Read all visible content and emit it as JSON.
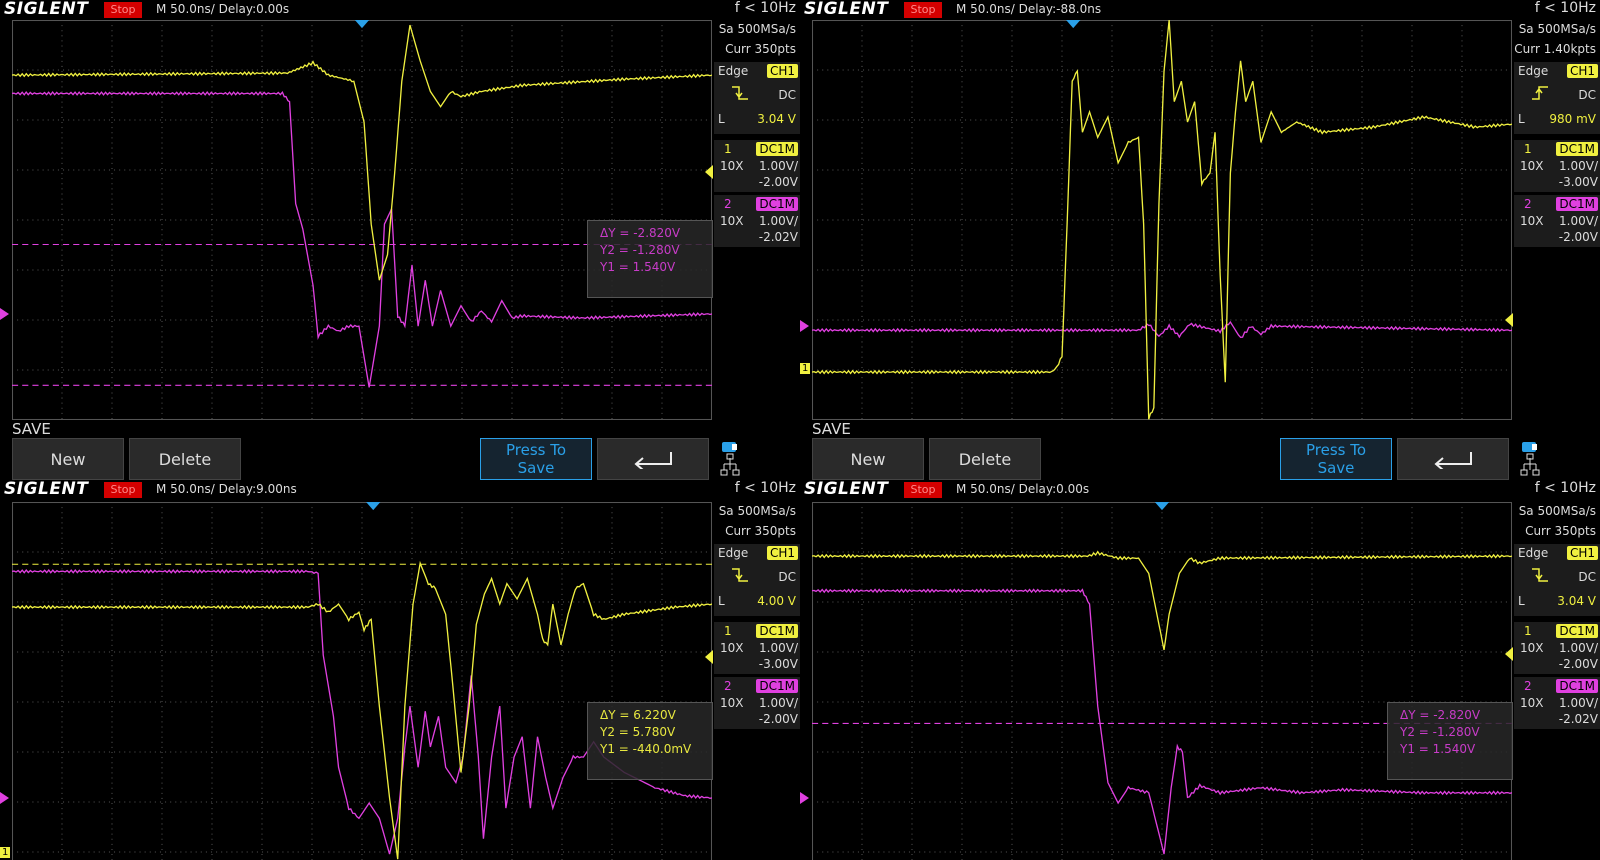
{
  "panels": [
    {
      "brand": "SIGLENT",
      "status": "Stop",
      "timebase": "M 50.0ns/  Delay:0.00s",
      "frequency": "f < 10Hz",
      "sample_rate": "Sa 500MSa/s",
      "memory": "Curr 350pts",
      "trigger": {
        "type": "Edge",
        "source": "CH1",
        "coupling": "DC",
        "level_label": "L",
        "level": "3.04 V"
      },
      "channels": [
        {
          "number": "1",
          "impedance": "DC1M",
          "probe": "10X",
          "scale": "1.00V/",
          "offset": "-2.00V"
        },
        {
          "number": "2",
          "impedance": "DC1M",
          "probe": "10X",
          "scale": "1.00V/",
          "offset": "-2.02V"
        }
      ],
      "cursor": {
        "color": "#c83cc8",
        "delta": "ΔY = -2.820V",
        "y2": "Y2 = -1.280V",
        "y1": "Y1 = 1.540V"
      },
      "menu": {
        "title": "SAVE",
        "buttons": [
          "New",
          "Delete",
          "Press To Save"
        ]
      }
    },
    {
      "brand": "SIGLENT",
      "status": "Stop",
      "timebase": "M 50.0ns/  Delay:-88.0ns",
      "frequency": "f < 10Hz",
      "sample_rate": "Sa 500MSa/s",
      "memory": "Curr 1.40kpts",
      "trigger": {
        "type": "Edge",
        "source": "CH1",
        "coupling": "DC",
        "level_label": "L",
        "level": "980 mV"
      },
      "channels": [
        {
          "number": "1",
          "impedance": "DC1M",
          "probe": "10X",
          "scale": "1.00V/",
          "offset": "-3.00V"
        },
        {
          "number": "2",
          "impedance": "DC1M",
          "probe": "10X",
          "scale": "1.00V/",
          "offset": "-2.00V"
        }
      ],
      "ground_marker": "1",
      "menu": {
        "title": "SAVE",
        "buttons": [
          "New",
          "Delete",
          "Press To Save"
        ]
      }
    },
    {
      "brand": "SIGLENT",
      "status": "Stop",
      "timebase": "M 50.0ns/  Delay:9.00ns",
      "frequency": "f < 10Hz",
      "sample_rate": "Sa 500MSa/s",
      "memory": "Curr 350pts",
      "trigger": {
        "type": "Edge",
        "source": "CH1",
        "coupling": "DC",
        "level_label": "L",
        "level": "4.00 V"
      },
      "channels": [
        {
          "number": "1",
          "impedance": "DC1M",
          "probe": "10X",
          "scale": "1.00V/",
          "offset": "-3.00V"
        },
        {
          "number": "2",
          "impedance": "DC1M",
          "probe": "10X",
          "scale": "1.00V/",
          "offset": "-2.00V"
        }
      ],
      "cursor": {
        "color": "#e8e840",
        "delta": "ΔY = 6.220V",
        "y2": "Y2 = 5.780V",
        "y1": "Y1 = -440.0mV"
      },
      "ground_marker": "1"
    },
    {
      "brand": "SIGLENT",
      "status": "Stop",
      "timebase": "M 50.0ns/  Delay:0.00s",
      "frequency": "f < 10Hz",
      "sample_rate": "Sa 500MSa/s",
      "memory": "Curr 350pts",
      "trigger": {
        "type": "Edge",
        "source": "CH1",
        "coupling": "DC",
        "level_label": "L",
        "level": "3.04 V"
      },
      "channels": [
        {
          "number": "1",
          "impedance": "DC1M",
          "probe": "10X",
          "scale": "1.00V/",
          "offset": "-2.00V"
        },
        {
          "number": "2",
          "impedance": "DC1M",
          "probe": "10X",
          "scale": "1.00V/",
          "offset": "-2.02V"
        }
      ],
      "cursor": {
        "color": "#c83cc8",
        "delta": "ΔY = -2.820V",
        "y2": "Y2 = -1.280V",
        "y1": "Y1 = 1.540V"
      }
    }
  ]
}
